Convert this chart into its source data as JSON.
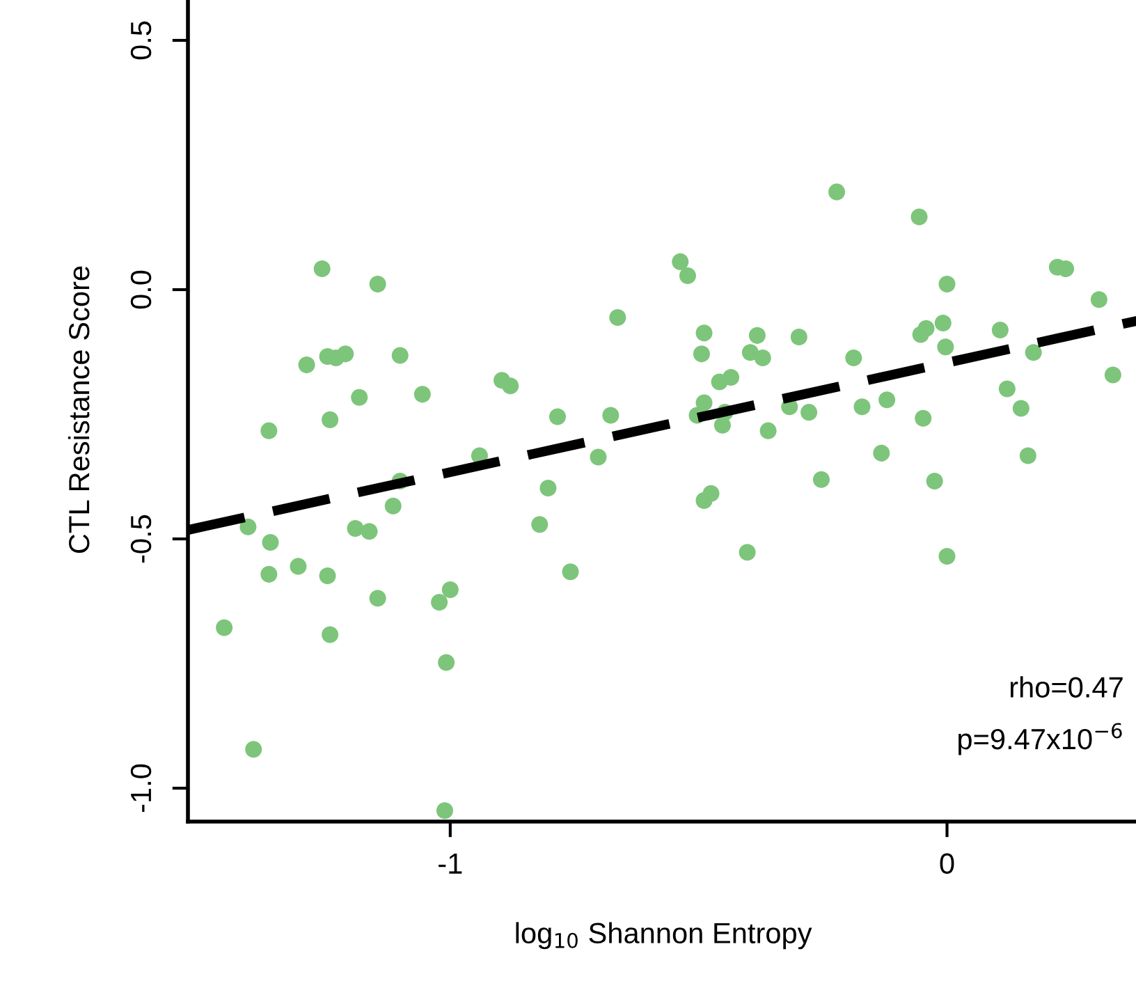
{
  "chart_data": {
    "type": "scatter",
    "xlabel": "log$_{10}$ Shannon Entropy",
    "ylabel": "CTL Resistance Score",
    "xlim": [
      -1.528,
      0.385
    ],
    "ylim": [
      -1.067,
      0.585
    ],
    "xticks": [
      -1,
      0
    ],
    "yticks": [
      {
        "value": -1,
        "label": "-1.0"
      },
      {
        "value": -0.5,
        "label": "-0.5"
      },
      {
        "value": 0,
        "label": "0.0"
      },
      {
        "value": 0.5,
        "label": "0.5"
      }
    ],
    "grid": false,
    "marker": "circle",
    "annotations": [
      "rho=0.47",
      "p=9.47x10$^{−6}$"
    ],
    "series": [
      {
        "color": "#7dc57a",
        "x": [
          -1.455,
          -1.407,
          -1.396,
          -1.365,
          -1.362,
          -1.365,
          -1.306,
          -1.289,
          -1.258,
          -1.247,
          -1.247,
          -1.242,
          -1.242,
          -1.23,
          -1.211,
          -1.191,
          -1.183,
          -1.163,
          -1.146,
          -1.146,
          -1.115,
          -1.101,
          -1.101,
          -1.056,
          -1.022,
          -1.011,
          -1.008,
          -1.0,
          -0.941,
          -0.896,
          -0.879,
          -0.82,
          -0.803,
          -0.784,
          -0.758,
          -0.702,
          -0.677,
          -0.663,
          -0.537,
          -0.522,
          -0.503,
          -0.494,
          -0.489,
          -0.489,
          -0.489,
          -0.475,
          -0.458,
          -0.452,
          -0.447,
          -0.435,
          -0.402,
          -0.396,
          -0.382,
          -0.371,
          -0.36,
          -0.317,
          -0.298,
          -0.278,
          -0.253,
          -0.222,
          -0.188,
          -0.171,
          -0.132,
          -0.121,
          -0.056,
          -0.053,
          -0.048,
          -0.042,
          -0.025,
          -0.008,
          -0.003,
          0.0,
          0.0,
          0.107,
          0.121,
          0.149,
          0.163,
          0.174,
          0.222,
          0.239,
          0.306,
          0.334
        ],
        "values": [
          -0.678,
          -0.476,
          -0.922,
          -0.283,
          -0.507,
          -0.571,
          -0.555,
          -0.151,
          0.042,
          -0.134,
          -0.574,
          -0.261,
          -0.692,
          -0.137,
          -0.129,
          -0.479,
          -0.216,
          -0.485,
          0.011,
          -0.619,
          -0.434,
          -0.132,
          -0.384,
          -0.21,
          -0.627,
          -1.045,
          -0.748,
          -0.602,
          -0.333,
          -0.182,
          -0.193,
          -0.471,
          -0.398,
          -0.255,
          -0.566,
          -0.336,
          -0.252,
          -0.056,
          0.056,
          0.028,
          -0.252,
          -0.129,
          -0.087,
          -0.227,
          -0.423,
          -0.409,
          -0.185,
          -0.272,
          -0.246,
          -0.176,
          -0.527,
          -0.126,
          -0.092,
          -0.137,
          -0.283,
          -0.235,
          -0.095,
          -0.246,
          -0.381,
          0.196,
          -0.137,
          -0.235,
          -0.328,
          -0.221,
          0.146,
          -0.09,
          -0.258,
          -0.078,
          -0.384,
          -0.067,
          -0.115,
          0.011,
          -0.535,
          -0.081,
          -0.199,
          -0.238,
          -0.333,
          -0.126,
          0.045,
          0.042,
          -0.02,
          -0.171
        ]
      },
      {
        "type": "line",
        "color": "#000000",
        "line_style": "dashed",
        "marker": "none",
        "x": [
          -1.528,
          0.385
        ],
        "values": [
          -0.482,
          -0.062
        ]
      }
    ]
  }
}
